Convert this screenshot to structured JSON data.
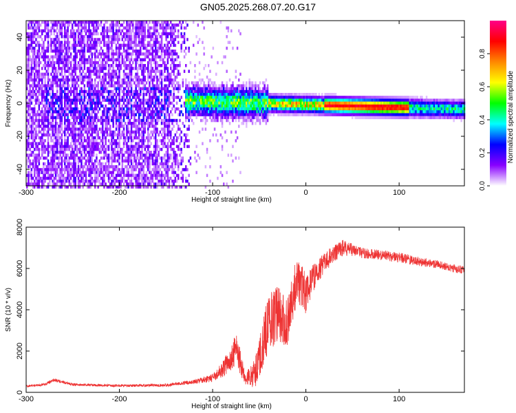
{
  "title": "GN05.2025.268.07.20.G17",
  "colors": {
    "snr_line": "#ee3333",
    "axis": "#000000",
    "background": "#ffffff"
  },
  "chart_data": [
    {
      "type": "heatmap",
      "title": "GN05.2025.268.07.20.G17",
      "xlabel": "Height of straight line (km)",
      "ylabel": "Frequency (Hz)",
      "xlim": [
        -300,
        170
      ],
      "ylim": [
        -50,
        50
      ],
      "x_ticks": [
        -300,
        -200,
        -100,
        0,
        100
      ],
      "y_ticks": [
        -40,
        -20,
        0,
        20,
        40
      ],
      "colorbar": {
        "label": "Normalized spectral amplitude",
        "range": [
          0,
          1
        ],
        "ticks": [
          "0.0",
          "0.2",
          "0.4",
          "0.6",
          "0.8"
        ],
        "colormap": [
          "#ffffff",
          "#8800ff",
          "#0000ff",
          "#00ffff",
          "#00ff00",
          "#ffff00",
          "#ff8800",
          "#ff0000",
          "#ff0088"
        ]
      },
      "features": {
        "noise_region_x": [
          -300,
          -120
        ],
        "ridge_start_x": -130,
        "ridge_frequency_start_hz": 2,
        "ridge_frequency_end_hz": -3,
        "ridge_peak_x_range": [
          20,
          110
        ]
      }
    },
    {
      "type": "line",
      "xlabel": "Height of straight line (km)",
      "ylabel": "SNR (10 * v/v)",
      "xlim": [
        -300,
        170
      ],
      "ylim": [
        0,
        8000
      ],
      "x_ticks": [
        -300,
        -200,
        -100,
        0,
        100
      ],
      "y_ticks": [
        0,
        2000,
        4000,
        6000,
        8000
      ],
      "series": [
        {
          "x": [
            -300,
            -280,
            -270,
            -250,
            -200,
            -150,
            -120,
            -100,
            -90,
            -80,
            -75,
            -70,
            -65,
            -55,
            -50,
            -45,
            -40,
            -30,
            -20,
            -15,
            -10,
            0,
            5,
            10,
            20,
            30,
            40,
            50,
            60,
            80,
            100,
            120,
            140,
            160,
            170
          ],
          "y": [
            300,
            380,
            600,
            380,
            320,
            350,
            500,
            700,
            1100,
            1600,
            2200,
            1400,
            600,
            900,
            1500,
            2600,
            3300,
            3800,
            3200,
            4300,
            5500,
            4800,
            5300,
            5700,
            6300,
            6700,
            7000,
            6900,
            6750,
            6650,
            6550,
            6350,
            6200,
            6000,
            5900
          ],
          "noise_amplitude": [
            50,
            60,
            80,
            60,
            60,
            70,
            100,
            200,
            400,
            600,
            800,
            600,
            300,
            700,
            1000,
            1300,
            1400,
            1400,
            1300,
            1200,
            1100,
            1000,
            800,
            600,
            500,
            400,
            400,
            300,
            250,
            250,
            250,
            220,
            200,
            200,
            200
          ]
        }
      ]
    }
  ]
}
